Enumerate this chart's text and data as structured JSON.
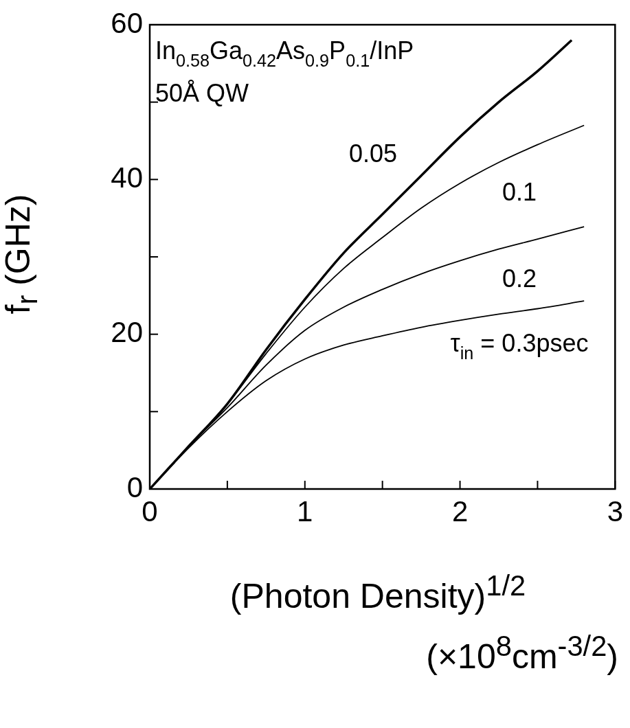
{
  "chart_data": {
    "type": "line",
    "xlabel": "(Photon Density)$^{1/2}$ (×10$^{8}$cm$^{-3/2}$)",
    "ylabel": "f$_{r}$ (GHz)",
    "xlim": [
      0,
      3
    ],
    "ylim": [
      0,
      60
    ],
    "xticks": [
      0,
      {
        "value": 0.5,
        "label": null
      },
      1,
      {
        "value": 1.5,
        "label": null
      },
      2,
      {
        "value": 2.5,
        "label": null
      },
      3
    ],
    "yticks": [
      0,
      {
        "value": 10,
        "label": null
      },
      20,
      {
        "value": 30,
        "label": null
      },
      40,
      {
        "value": 50,
        "label": null
      },
      60
    ],
    "grid": false,
    "legend": false,
    "marker": "none",
    "line_style": "solid",
    "series": [
      {
        "name": "0.05",
        "color": "#000000",
        "x": [
          0,
          0.25,
          0.5,
          0.75,
          1,
          1.25,
          1.5,
          1.75,
          2,
          2.25,
          2.5,
          2.72
        ],
        "values": [
          0,
          5.5,
          11,
          18,
          24.5,
          30.5,
          35.5,
          40.5,
          45.5,
          50,
          54,
          58
        ]
      },
      {
        "name": "0.1",
        "color": "#000000",
        "x": [
          0,
          0.25,
          0.5,
          0.75,
          1,
          1.25,
          1.5,
          1.75,
          2,
          2.25,
          2.5,
          2.8
        ],
        "values": [
          0,
          5.5,
          11,
          17.5,
          23.5,
          28.5,
          32.5,
          36.3,
          39.5,
          42.2,
          44.5,
          47
        ]
      },
      {
        "name": "0.2",
        "color": "#000000",
        "x": [
          0,
          0.25,
          0.5,
          0.75,
          1,
          1.25,
          1.5,
          1.75,
          2,
          2.25,
          2.5,
          2.8
        ],
        "values": [
          0,
          5.5,
          10.5,
          16,
          20.5,
          23.5,
          25.8,
          27.8,
          29.5,
          31,
          32.3,
          33.9
        ]
      },
      {
        "name": "τ$_{in}$ = 0.3psec",
        "color": "#000000",
        "x": [
          0,
          0.25,
          0.5,
          0.75,
          1,
          1.25,
          1.5,
          1.75,
          2,
          2.25,
          2.5,
          2.8
        ],
        "values": [
          0,
          5.3,
          10,
          14,
          16.8,
          18.6,
          19.8,
          20.9,
          21.8,
          22.6,
          23.3,
          24.3
        ]
      }
    ],
    "annotations": [
      "In$_{0.58}$Ga$_{0.42}$As$_{0.9}$P$_{0.1}$/InP",
      "50Å QW"
    ]
  }
}
